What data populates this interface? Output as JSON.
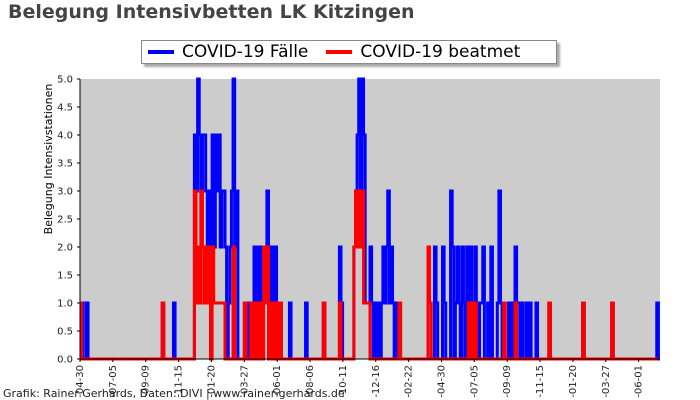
{
  "page": {
    "title": "Belegung Intensivbetten LK Kitzingen",
    "footer": "Grafik: Rainer Gerhards, Daten: DIVI | www.rainer-gerhards.de"
  },
  "chart_data": {
    "type": "line",
    "title": "Belegung Intensivbetten LK Kitzingen",
    "xlabel": "",
    "ylabel": "Belegung Intensivstationen",
    "ylim": [
      0,
      5
    ],
    "yticks": [
      "0.0",
      "0.5",
      "1.0",
      "1.5",
      "2.0",
      "2.5",
      "3.0",
      "3.5",
      "4.0",
      "4.5",
      "5.0"
    ],
    "xticks": [
      "-04-30",
      "-07-05",
      "-09-09",
      "-11-15",
      "-01-20",
      "-03-27",
      "-06-01",
      "-08-06",
      "-10-11",
      "-12-16",
      "-02-22",
      "-04-30",
      "-07-05",
      "-09-09",
      "-11-15",
      "-01-20",
      "-03-27",
      "-06-01"
    ],
    "grid": false,
    "background": "#cccccc",
    "legend_position": "top",
    "step": 1,
    "series": [
      {
        "name": "COVID-19 Fälle",
        "color": "#0000ff",
        "points": [
          [
            0,
            1
          ],
          [
            2,
            0
          ],
          [
            4,
            1
          ],
          [
            5,
            0
          ],
          [
            50,
            0
          ],
          [
            51,
            1
          ],
          [
            52,
            0
          ],
          [
            58,
            1
          ],
          [
            59,
            0
          ],
          [
            70,
            0
          ],
          [
            71,
            4
          ],
          [
            72,
            3
          ],
          [
            73,
            5
          ],
          [
            74,
            4
          ],
          [
            75,
            3
          ],
          [
            76,
            4
          ],
          [
            78,
            3
          ],
          [
            79,
            2
          ],
          [
            80,
            3
          ],
          [
            81,
            2
          ],
          [
            82,
            4
          ],
          [
            83,
            2
          ],
          [
            84,
            4
          ],
          [
            85,
            3
          ],
          [
            86,
            4
          ],
          [
            87,
            2
          ],
          [
            88,
            3
          ],
          [
            90,
            2
          ],
          [
            91,
            0
          ],
          [
            92,
            1
          ],
          [
            93,
            2
          ],
          [
            94,
            3
          ],
          [
            95,
            5
          ],
          [
            96,
            2
          ],
          [
            97,
            3
          ],
          [
            98,
            0
          ],
          [
            102,
            1
          ],
          [
            103,
            0
          ],
          [
            104,
            1
          ],
          [
            105,
            0
          ],
          [
            106,
            1
          ],
          [
            108,
            2
          ],
          [
            109,
            1
          ],
          [
            110,
            2
          ],
          [
            111,
            0
          ],
          [
            112,
            2
          ],
          [
            113,
            1
          ],
          [
            114,
            2
          ],
          [
            115,
            1
          ],
          [
            116,
            3
          ],
          [
            117,
            2
          ],
          [
            118,
            1
          ],
          [
            119,
            2
          ],
          [
            120,
            1
          ],
          [
            121,
            2
          ],
          [
            122,
            1
          ],
          [
            124,
            1
          ],
          [
            125,
            0
          ],
          [
            130,
            1
          ],
          [
            131,
            0
          ],
          [
            140,
            1
          ],
          [
            141,
            0
          ],
          [
            150,
            0
          ],
          [
            151,
            1
          ],
          [
            152,
            0
          ],
          [
            160,
            0
          ],
          [
            161,
            2
          ],
          [
            162,
            1
          ],
          [
            163,
            0
          ],
          [
            170,
            2
          ],
          [
            171,
            3
          ],
          [
            172,
            4
          ],
          [
            173,
            5
          ],
          [
            174,
            2
          ],
          [
            175,
            5
          ],
          [
            176,
            4
          ],
          [
            177,
            1
          ],
          [
            180,
            2
          ],
          [
            181,
            1
          ],
          [
            182,
            0
          ],
          [
            183,
            1
          ],
          [
            184,
            0
          ],
          [
            185,
            1
          ],
          [
            186,
            0
          ],
          [
            187,
            1
          ],
          [
            188,
            2
          ],
          [
            189,
            1
          ],
          [
            190,
            2
          ],
          [
            191,
            3
          ],
          [
            192,
            1
          ],
          [
            193,
            2
          ],
          [
            194,
            1
          ],
          [
            195,
            0
          ],
          [
            196,
            1
          ],
          [
            197,
            0
          ],
          [
            198,
            1
          ],
          [
            199,
            0
          ],
          [
            220,
            2
          ],
          [
            221,
            1
          ],
          [
            222,
            0
          ],
          [
            225,
            2
          ],
          [
            226,
            1
          ],
          [
            227,
            0
          ],
          [
            230,
            3
          ],
          [
            231,
            2
          ],
          [
            232,
            0
          ],
          [
            233,
            1
          ],
          [
            234,
            2
          ],
          [
            235,
            1
          ],
          [
            236,
            0
          ],
          [
            237,
            2
          ],
          [
            238,
            1
          ],
          [
            239,
            0
          ],
          [
            240,
            2
          ],
          [
            241,
            1
          ],
          [
            242,
            2
          ],
          [
            243,
            1
          ],
          [
            244,
            0
          ],
          [
            245,
            2
          ],
          [
            246,
            1
          ],
          [
            247,
            0
          ],
          [
            248,
            1
          ],
          [
            250,
            2
          ],
          [
            251,
            0
          ],
          [
            253,
            1
          ],
          [
            254,
            0
          ],
          [
            255,
            2
          ],
          [
            256,
            0
          ],
          [
            259,
            1
          ],
          [
            260,
            3
          ],
          [
            261,
            1
          ],
          [
            262,
            0
          ],
          [
            266,
            1
          ],
          [
            267,
            0
          ],
          [
            268,
            1
          ],
          [
            269,
            0
          ],
          [
            270,
            2
          ],
          [
            271,
            1
          ],
          [
            273,
            0
          ],
          [
            274,
            1
          ],
          [
            275,
            0
          ],
          [
            277,
            1
          ],
          [
            278,
            0
          ],
          [
            279,
            1
          ],
          [
            280,
            0
          ],
          [
            283,
            1
          ],
          [
            284,
            0
          ],
          [
            290,
            0
          ],
          [
            291,
            1
          ],
          [
            292,
            0
          ],
          [
            312,
            1
          ],
          [
            313,
            0
          ],
          [
            330,
            1
          ],
          [
            331,
            0
          ],
          [
            358,
            1
          ],
          [
            359,
            0
          ]
        ]
      },
      {
        "name": "COVID-19 beatmet",
        "color": "#ff0000",
        "points": [
          [
            0,
            1
          ],
          [
            1,
            0
          ],
          [
            50,
            0
          ],
          [
            51,
            1
          ],
          [
            52,
            0
          ],
          [
            70,
            0
          ],
          [
            71,
            3
          ],
          [
            72,
            1
          ],
          [
            73,
            2
          ],
          [
            74,
            1
          ],
          [
            75,
            3
          ],
          [
            76,
            2
          ],
          [
            77,
            1
          ],
          [
            78,
            2
          ],
          [
            79,
            1
          ],
          [
            80,
            2
          ],
          [
            81,
            0
          ],
          [
            82,
            2
          ],
          [
            83,
            1
          ],
          [
            90,
            0
          ],
          [
            91,
            0
          ],
          [
            95,
            2
          ],
          [
            96,
            0
          ],
          [
            102,
            1
          ],
          [
            103,
            0
          ],
          [
            106,
            1
          ],
          [
            107,
            0
          ],
          [
            108,
            1
          ],
          [
            109,
            0
          ],
          [
            110,
            1
          ],
          [
            111,
            0
          ],
          [
            112,
            1
          ],
          [
            113,
            0
          ],
          [
            114,
            2
          ],
          [
            115,
            1
          ],
          [
            116,
            2
          ],
          [
            117,
            0
          ],
          [
            118,
            1
          ],
          [
            119,
            0
          ],
          [
            120,
            1
          ],
          [
            121,
            0
          ],
          [
            122,
            1
          ],
          [
            123,
            0
          ],
          [
            124,
            1
          ],
          [
            125,
            0
          ],
          [
            150,
            0
          ],
          [
            151,
            1
          ],
          [
            152,
            0
          ],
          [
            160,
            0
          ],
          [
            161,
            1
          ],
          [
            162,
            0
          ],
          [
            170,
            2
          ],
          [
            171,
            3
          ],
          [
            172,
            2
          ],
          [
            173,
            3
          ],
          [
            174,
            2
          ],
          [
            175,
            3
          ],
          [
            176,
            1
          ],
          [
            177,
            1
          ],
          [
            180,
            0
          ],
          [
            198,
            1
          ],
          [
            199,
            0
          ],
          [
            215,
            0
          ],
          [
            216,
            2
          ],
          [
            217,
            1
          ],
          [
            218,
            0
          ],
          [
            240,
            0
          ],
          [
            241,
            1
          ],
          [
            242,
            0
          ],
          [
            243,
            1
          ],
          [
            244,
            0
          ],
          [
            245,
            1
          ],
          [
            246,
            0
          ],
          [
            262,
            0
          ],
          [
            263,
            1
          ],
          [
            264,
            0
          ],
          [
            270,
            1
          ],
          [
            271,
            0
          ],
          [
            290,
            0
          ],
          [
            291,
            1
          ],
          [
            292,
            0
          ],
          [
            312,
            1
          ],
          [
            313,
            0
          ],
          [
            330,
            1
          ],
          [
            331,
            0
          ],
          [
            358,
            0
          ]
        ]
      }
    ],
    "x_domain": [
      0,
      360
    ]
  }
}
